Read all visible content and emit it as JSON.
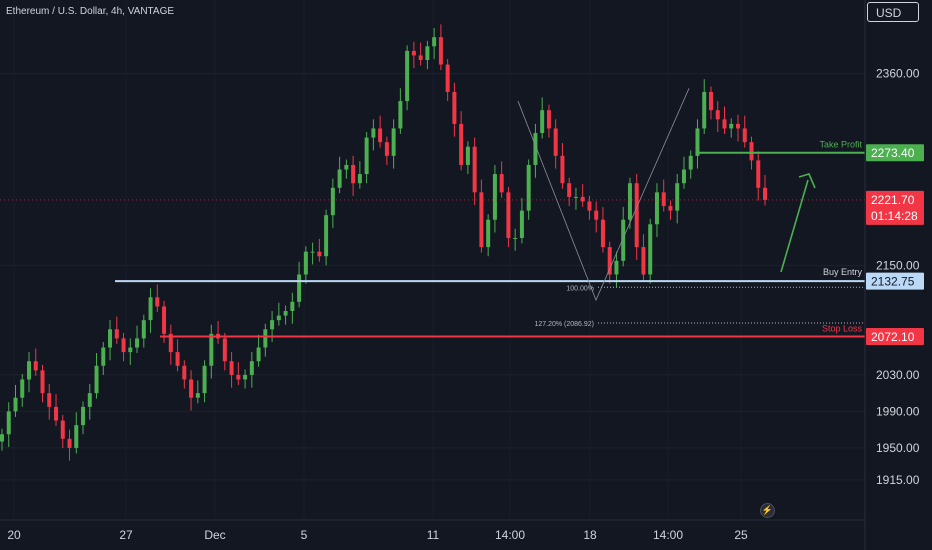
{
  "header": {
    "symbol_title": "Ethereum / U.S. Dollar, 4h, VANTAGE",
    "currency_label": "USD"
  },
  "colors": {
    "background": "#131722",
    "up_candle": "#4caf50",
    "down_candle": "#f23645",
    "take_profit": "#4caf50",
    "buy_entry": "#bbd9f7",
    "stop_loss": "#f23645",
    "last_price": "#f23645",
    "text": "#d1d4dc"
  },
  "chart_data": {
    "type": "candlestick",
    "symbol": "Ethereum / U.S. Dollar",
    "interval": "4h",
    "source": "VANTAGE",
    "currency": "USD",
    "ylim": [
      1882,
      2421
    ],
    "y_ticks": [
      "1915.00",
      "1950.00",
      "1990.00",
      "2030.00",
      "2150.00",
      "2360.00"
    ],
    "x_ticks": [
      "20",
      "27",
      "Dec",
      "5",
      "11",
      "14:00",
      "18",
      "14:00",
      "25"
    ],
    "levels": [
      {
        "label": "Take Profit",
        "value": "2273.40",
        "color": "#4caf50"
      },
      {
        "label": "Buy Entry",
        "value": "2132.75",
        "color": "#bbd9f7"
      },
      {
        "label": "Stop Loss",
        "value": "2072.10",
        "color": "#f23645"
      }
    ],
    "fib_levels": [
      {
        "label": "100.00%",
        "value": 2126
      },
      {
        "label": "127.20% (2086.92)",
        "value": 2086.92
      }
    ],
    "last_price": {
      "value": "2221.70",
      "countdown": "01:14:28"
    },
    "close": [
      1965,
      1990,
      2005,
      2025,
      2045,
      2035,
      2010,
      1995,
      1980,
      1960,
      1950,
      1975,
      1995,
      2010,
      2040,
      2060,
      2080,
      2070,
      2055,
      2060,
      2070,
      2090,
      2115,
      2105,
      2075,
      2055,
      2040,
      2025,
      2005,
      2010,
      2040,
      2075,
      2070,
      2045,
      2030,
      2025,
      2030,
      2045,
      2060,
      2080,
      2090,
      2095,
      2100,
      2110,
      2140,
      2165,
      2165,
      2160,
      2205,
      2235,
      2255,
      2260,
      2240,
      2250,
      2290,
      2300,
      2285,
      2270,
      2300,
      2330,
      2385,
      2380,
      2375,
      2390,
      2400,
      2370,
      2340,
      2305,
      2260,
      2280,
      2230,
      2170,
      2200,
      2250,
      2230,
      2180,
      2180,
      2210,
      2260,
      2295,
      2320,
      2300,
      2270,
      2240,
      2225,
      2225,
      2220,
      2210,
      2200,
      2170,
      2140,
      2155,
      2200,
      2240,
      2170,
      2140,
      2195,
      2230,
      2215,
      2210,
      2240,
      2255,
      2270,
      2300,
      2340,
      2320,
      2310,
      2300,
      2305,
      2300,
      2285,
      2265,
      2235,
      2221.7
    ]
  }
}
